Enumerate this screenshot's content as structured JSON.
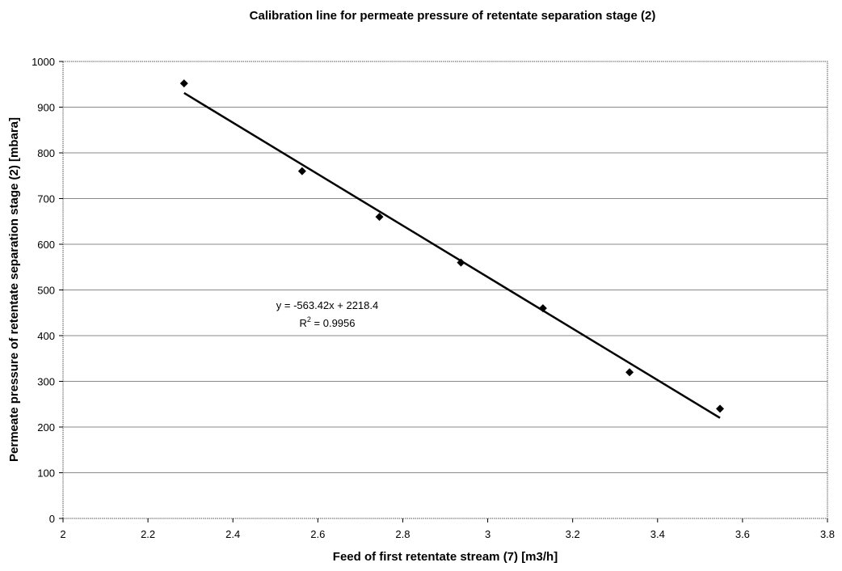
{
  "chart_data": {
    "type": "scatter",
    "title": "Calibration line for permeate pressure of retentate separation stage (2)",
    "xlabel": "Feed of first retentate stream (7) [m3/h]",
    "ylabel": "Permeate pressure of retentate separation stage (2) [mbara]",
    "xlim": [
      2,
      3.8
    ],
    "ylim": [
      0,
      1000
    ],
    "xticks": [
      2,
      2.2,
      2.4,
      2.6,
      2.8,
      3,
      3.2,
      3.4,
      3.6,
      3.8
    ],
    "yticks": [
      0,
      100,
      200,
      300,
      400,
      500,
      600,
      700,
      800,
      900,
      1000
    ],
    "xtick_labels": [
      "2",
      "2.2",
      "2.4",
      "2.6",
      "2.8",
      "3",
      "3.2",
      "3.4",
      "3.6",
      "3.8"
    ],
    "ytick_labels": [
      "0",
      "100",
      "200",
      "300",
      "400",
      "500",
      "600",
      "700",
      "800",
      "900",
      "1000"
    ],
    "grid": "horizontal",
    "series": [
      {
        "marker": "diamond",
        "color": "#000000",
        "x": [
          2.285,
          2.563,
          2.745,
          2.937,
          3.13,
          3.334,
          3.547
        ],
        "y": [
          952,
          760,
          660,
          560,
          460,
          320,
          240
        ]
      }
    ],
    "trendline": {
      "slope": -563.42,
      "intercept": 2218.4,
      "x_range": [
        2.285,
        3.547
      ],
      "equation_label": "y = -563.42x + 2218.4",
      "r2_label": "R",
      "r2_superscript": "2",
      "r2_value": " = 0.9956"
    }
  }
}
